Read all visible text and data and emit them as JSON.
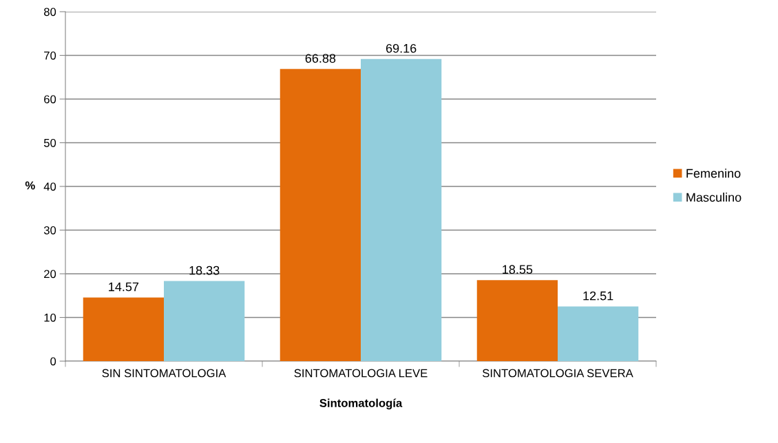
{
  "chart_data": {
    "type": "bar",
    "xlabel": "Sintomatología",
    "ylabel": "%",
    "categories": [
      "SIN SINTOMATOLOGIA",
      "SINTOMATOLOGIA LEVE",
      "SINTOMATOLOGIA SEVERA"
    ],
    "series": [
      {
        "name": "Femenino",
        "color": "#e46c0a",
        "values": [
          14.57,
          66.88,
          18.55
        ]
      },
      {
        "name": "Masculino",
        "color": "#92cddc",
        "values": [
          18.33,
          69.16,
          12.51
        ]
      }
    ],
    "ylim": [
      0,
      80
    ],
    "yticks": [
      0,
      10,
      20,
      30,
      40,
      50,
      60,
      70,
      80
    ],
    "grid": "y",
    "legend": "right",
    "data_labels": true
  }
}
